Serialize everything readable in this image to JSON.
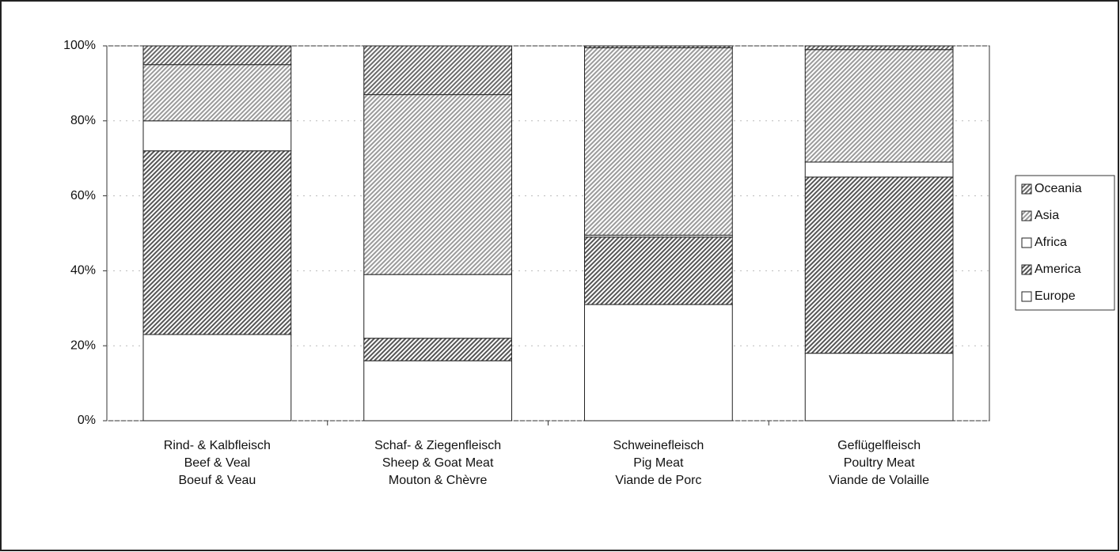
{
  "chart_data": {
    "type": "stacked_bar_100",
    "categories": [
      [
        "Rind- & Kalbfleisch",
        "Beef & Veal",
        "Boeuf & Veau"
      ],
      [
        "Schaf- & Ziegenfleisch",
        "Sheep & Goat Meat",
        "Mouton & Chèvre"
      ],
      [
        "Schweinefleisch",
        "Pig Meat",
        "Viande de Porc"
      ],
      [
        "Geflügelfleisch",
        "Poultry Meat",
        "Viande de Volaille"
      ]
    ],
    "series": [
      {
        "name": "Europe",
        "color": "#ffffff",
        "values": [
          23,
          16,
          31,
          18
        ]
      },
      {
        "name": "America",
        "color": "#555555",
        "values": [
          49,
          6,
          18,
          47
        ]
      },
      {
        "name": "Africa",
        "color": "#ffffff",
        "values": [
          8,
          17,
          0.5,
          4
        ]
      },
      {
        "name": "Asia",
        "color": "#9a9a9a",
        "values": [
          15,
          48,
          50,
          30
        ]
      },
      {
        "name": "Oceania",
        "color": "#6a6a6a",
        "values": [
          5,
          13,
          0.5,
          1
        ]
      }
    ],
    "ylim": [
      0,
      100
    ],
    "yticks": [
      {
        "value": 0,
        "label": "0%"
      },
      {
        "value": 20,
        "label": "20%"
      },
      {
        "value": 40,
        "label": "40%"
      },
      {
        "value": 60,
        "label": "60%"
      },
      {
        "value": 80,
        "label": "80%"
      },
      {
        "value": 100,
        "label": "100%"
      }
    ],
    "legend": "right"
  }
}
